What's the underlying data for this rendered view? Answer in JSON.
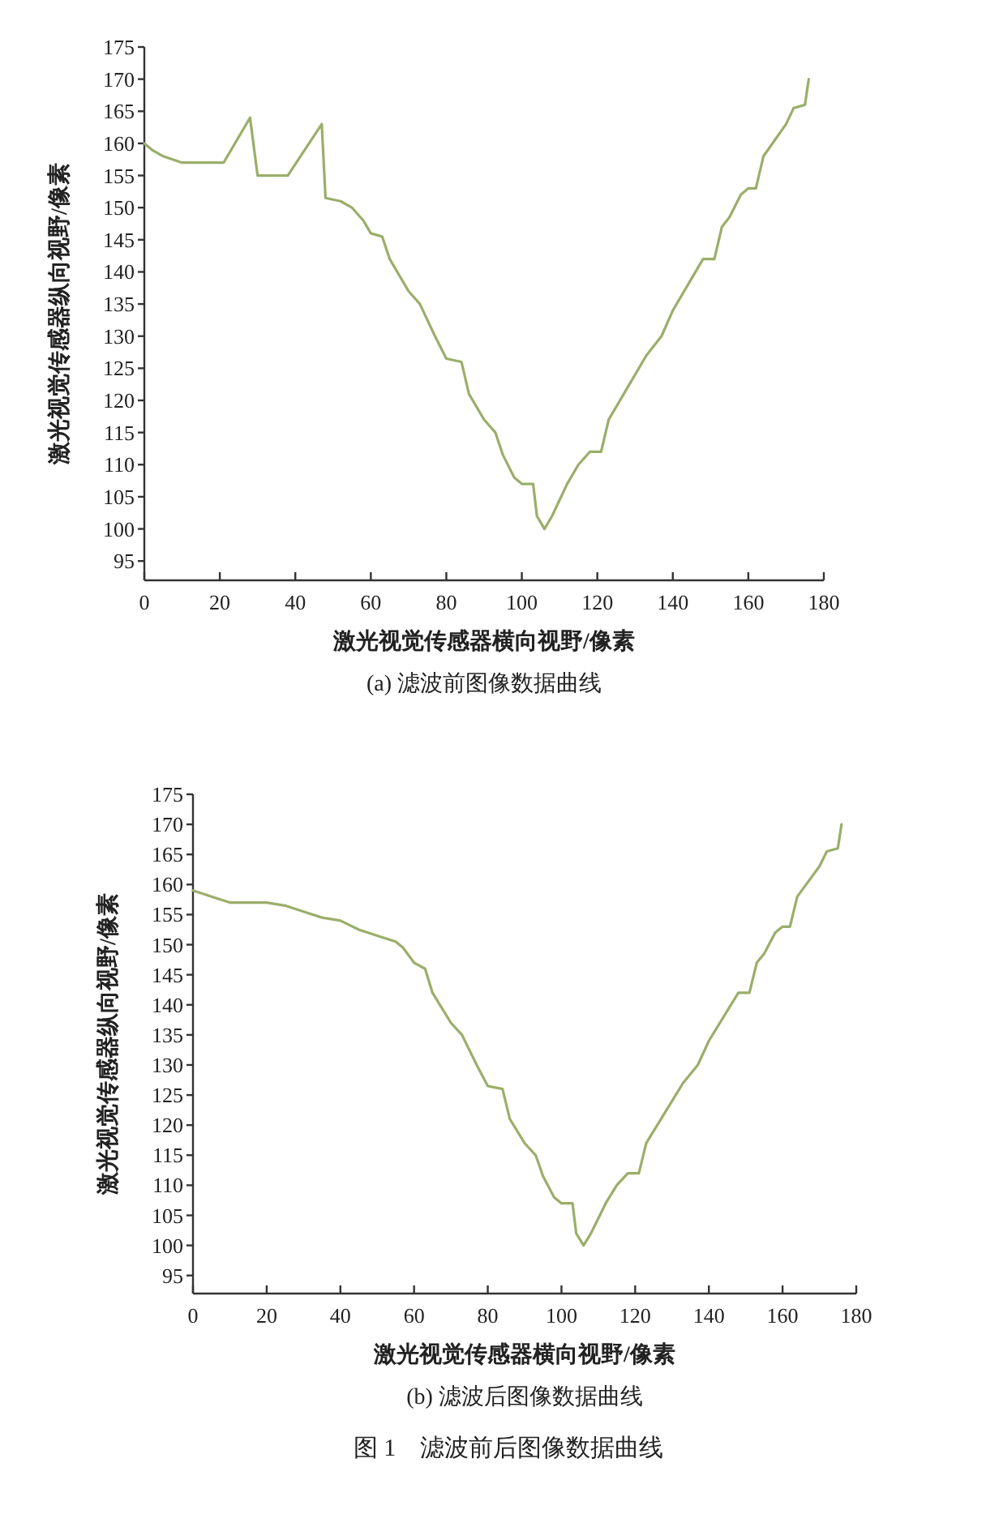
{
  "chart_data": [
    {
      "type": "line",
      "title": "(a) 滤波前图像数据曲线",
      "xlabel": "激光视觉传感器横向视野/像素",
      "ylabel": "激光视觉传感器纵向视野/像素",
      "xlim": [
        0,
        180
      ],
      "xticks": [
        0,
        20,
        40,
        60,
        80,
        100,
        120,
        140,
        160,
        180
      ],
      "ylim": [
        92,
        175
      ],
      "yticks": [
        95,
        100,
        105,
        110,
        115,
        120,
        125,
        130,
        135,
        140,
        145,
        150,
        155,
        160,
        165,
        170,
        175
      ],
      "grid": false,
      "marker": "none",
      "line_style": "solid",
      "series": [
        {
          "color": "#9aae6a",
          "x": [
            0,
            2,
            5,
            10,
            21,
            28,
            30,
            38,
            47,
            48,
            52,
            55,
            58,
            60,
            63,
            65,
            70,
            73,
            77,
            80,
            84,
            86,
            90,
            93,
            95,
            98,
            100,
            103,
            104,
            106,
            108,
            112,
            115,
            118,
            121,
            123,
            128,
            133,
            137,
            140,
            145,
            148,
            151,
            153,
            155,
            158,
            160,
            162,
            164,
            167,
            170,
            172,
            175,
            176
          ],
          "values": [
            160,
            159,
            158,
            157,
            157,
            164,
            155,
            155,
            163,
            151.5,
            151,
            150,
            148,
            146,
            145.5,
            142,
            137,
            135,
            130,
            126.5,
            126,
            121,
            117,
            115,
            111.5,
            108,
            107,
            107,
            102,
            100,
            102,
            107,
            110,
            112,
            112,
            117,
            122,
            127,
            130,
            134,
            139,
            142,
            142,
            147,
            148.5,
            152,
            153,
            153,
            158,
            160.5,
            163,
            165.5,
            166,
            170
          ]
        }
      ]
    },
    {
      "type": "line",
      "title": "(b) 滤波后图像数据曲线",
      "xlabel": "激光视觉传感器横向视野/像素",
      "ylabel": "激光视觉传感器纵向视野/像素",
      "xlim": [
        0,
        180
      ],
      "xticks": [
        0,
        20,
        40,
        60,
        80,
        100,
        120,
        140,
        160,
        180
      ],
      "ylim": [
        92,
        175
      ],
      "yticks": [
        95,
        100,
        105,
        110,
        115,
        120,
        125,
        130,
        135,
        140,
        145,
        150,
        155,
        160,
        165,
        170,
        175
      ],
      "grid": false,
      "marker": "none",
      "line_style": "solid",
      "annotations": [
        "图 1　滤波前后图像数据曲线"
      ],
      "series": [
        {
          "color": "#9aae6a",
          "x": [
            0,
            5,
            10,
            20,
            25,
            30,
            35,
            40,
            45,
            50,
            55,
            57,
            60,
            63,
            65,
            70,
            73,
            77,
            80,
            84,
            86,
            90,
            93,
            95,
            98,
            100,
            103,
            104,
            106,
            108,
            112,
            115,
            118,
            121,
            123,
            128,
            133,
            137,
            140,
            145,
            148,
            151,
            153,
            155,
            158,
            160,
            162,
            164,
            167,
            170,
            172,
            175,
            176
          ],
          "values": [
            159,
            158,
            157,
            157,
            156.5,
            155.5,
            154.5,
            154,
            152.5,
            151.5,
            150.5,
            149.5,
            147,
            146,
            142,
            137,
            135,
            130,
            126.5,
            126,
            121,
            117,
            115,
            111.5,
            108,
            107,
            107,
            102,
            100,
            102,
            107,
            110,
            112,
            112,
            117,
            122,
            127,
            130,
            134,
            139,
            142,
            142,
            147,
            148.5,
            152,
            153,
            153,
            158,
            160.5,
            163,
            165.5,
            166,
            170
          ]
        }
      ]
    }
  ]
}
